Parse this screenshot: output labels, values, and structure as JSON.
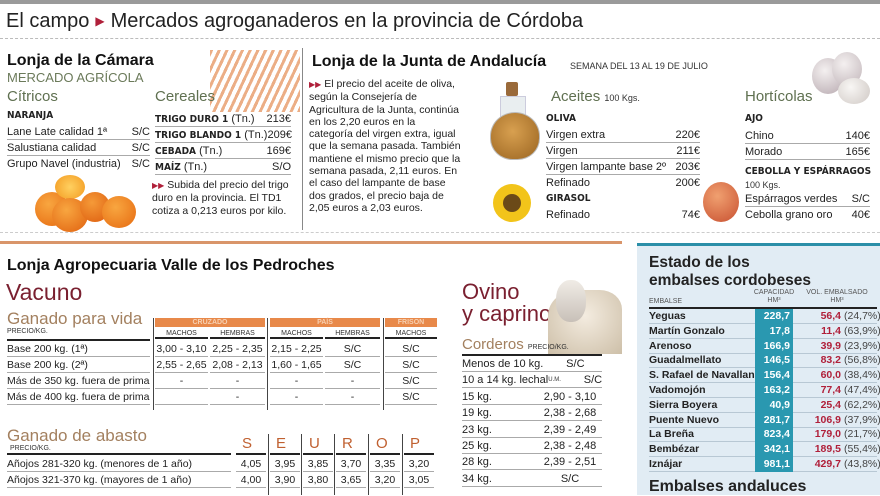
{
  "header": {
    "section": "El campo",
    "title": "Mercados agroganaderos en la provincia de Córdoba"
  },
  "camara": {
    "title": "Lonja de la Cámara",
    "subtitle": "MERCADO AGRÍCOLA",
    "citricos": {
      "title": "Cítricos",
      "group": "NARANJA",
      "rows": [
        {
          "label": "Lane Late calidad 1ª",
          "value": "S/C"
        },
        {
          "label": "Salustiana calidad",
          "value": "S/C"
        },
        {
          "label": "Grupo Navel (industria)",
          "value": "S/C"
        }
      ]
    },
    "cereales": {
      "title": "Cereales",
      "rows": [
        {
          "label": "TRIGO DURO 1",
          "unit": "(Tn.)",
          "value": "213€"
        },
        {
          "label": "TRIGO BLANDO 1",
          "unit": "(Tn.)",
          "value": "209€"
        },
        {
          "label": "CEBADA",
          "unit": "(Tn.)",
          "value": "169€"
        },
        {
          "label": "MAÍZ",
          "unit": "(Tn.)",
          "value": "S/O"
        }
      ],
      "note": "Subida del precio del trigo duro en la provincia. El TD1 cotiza a 0,213 euros por kilo."
    }
  },
  "junta": {
    "title": "Lonja de la Junta de Andalucía",
    "week": "SEMANA DEL 13 AL 19 DE JULIO",
    "note": "El precio del aceite de oliva, según la Consejería de Agricultura de la Junta, continúa en los 2,20 euros en la categoría del virgen extra, igual que la semana pasada. También mantiene el mismo precio que la semana pasada, 2,11 euros. En el caso del lampante de base dos grados, el precio baja de 2,05 euros  a 2,03 euros.",
    "aceites": {
      "title": "Aceites",
      "unit": "100 Kgs.",
      "oliva": "OLIVA",
      "oliva_rows": [
        {
          "label": "Virgen extra",
          "value": "220€"
        },
        {
          "label": "Virgen",
          "value": "211€"
        },
        {
          "label": "Virgen lampante base 2º",
          "value": "203€"
        },
        {
          "label": "Refinado",
          "value": "200€"
        }
      ],
      "girasol": "GIRASOL",
      "girasol_rows": [
        {
          "label": "Refinado",
          "value": "74€"
        }
      ]
    },
    "horticolas": {
      "title": "Hortícolas",
      "ajo": "AJO",
      "ajo_rows": [
        {
          "label": "Chino",
          "value": "140€"
        },
        {
          "label": "Morado",
          "value": "165€"
        }
      ],
      "cebolla": "CEBOLLA Y ESPÁRRAGOS",
      "cebolla_unit": "100 Kgs.",
      "cebolla_rows": [
        {
          "label": "Espárragos verdes",
          "value": "S/C"
        },
        {
          "label": "Cebolla grano oro",
          "value": "40€"
        }
      ]
    }
  },
  "pedroches": {
    "title": "Lonja Agropecuaria Valle de los Pedroches",
    "vacuno": "Vacuno",
    "vida": {
      "title": "Ganado para vida",
      "unit": "PRECIO/KG.",
      "groups": [
        "CRUZADO",
        "PAÍS",
        "FRISON"
      ],
      "subheaders": [
        "MACHOS",
        "HEMBRAS",
        "MACHOS",
        "HEMBRAS",
        "MACHOS"
      ],
      "rows": [
        {
          "label": "Base 200 kg. (1ª)",
          "values": [
            "3,00 - 3,10",
            "2,25 - 2,35",
            "2,15 - 2,25",
            "S/C",
            "S/C"
          ]
        },
        {
          "label": "Base 200 kg. (2ª)",
          "values": [
            "2,55 - 2,65",
            "2,08 - 2,13",
            "1,60 - 1,65",
            "S/C",
            "S/C"
          ]
        },
        {
          "label": "Más de 350 kg. fuera de prima",
          "values": [
            "-",
            "-",
            "-",
            "-",
            "S/C"
          ]
        },
        {
          "label": "Más de 400 kg. fuera de prima",
          "values": [
            "",
            "-",
            "-",
            "-",
            "S/C"
          ]
        }
      ]
    },
    "abasto": {
      "title": "Ganado de abasto",
      "unit": "PRECIO/KG.",
      "columns": [
        "S",
        "E",
        "U",
        "R",
        "O",
        "P"
      ],
      "rows": [
        {
          "label": "Añojos 281-320 kg. (menores de 1 año)",
          "values": [
            "4,05",
            "3,95",
            "3,85",
            "3,70",
            "3,35",
            "3,20"
          ]
        },
        {
          "label": "Añojos 321-370 kg. (mayores de 1 año)",
          "values": [
            "4,00",
            "3,90",
            "3,80",
            "3,65",
            "3,20",
            "3,05"
          ]
        }
      ]
    },
    "ovino": {
      "title1": "Ovino",
      "title2": "y caprino",
      "corderos": "Corderos",
      "unit": "PRECIO/KG.",
      "lechal_unit": "U.M.",
      "rows": [
        {
          "label": "Menos de 10 kg.",
          "value": "S/C"
        },
        {
          "label": "10 a 14 kg. lechal",
          "value": "S/C"
        },
        {
          "label": "15 kg.",
          "value": "2,90 - 3,10"
        },
        {
          "label": "19 kg.",
          "value": "2,38 - 2,68"
        },
        {
          "label": "23 kg.",
          "value": "2,39 - 2,49"
        },
        {
          "label": "25 kg.",
          "value": "2,38 - 2,48"
        },
        {
          "label": "28 kg.",
          "value": "2,39 - 2,51"
        },
        {
          "label": "34 kg.",
          "value": "S/C"
        }
      ]
    }
  },
  "embalses": {
    "title": "Estado de los embalses cordobeses",
    "col_name": "EMBALSE",
    "col_cap": "CAPACIDAD HM³",
    "col_vol": "VOL. EMBALSADO HM³",
    "rows": [
      [
        "Yeguas",
        "228,7",
        "56,4",
        "(24,7%)"
      ],
      [
        "Martín Gonzalo",
        "17,8",
        "11,4",
        "(63,9%)"
      ],
      [
        "Arenoso",
        "166,9",
        "39,9",
        "(23,9%)"
      ],
      [
        "Guadalmellato",
        "146,5",
        "83,2",
        "(56,8%)"
      ],
      [
        "S. Rafael de Navallana",
        "156,4",
        "60,0",
        "(38,4%)"
      ],
      [
        "Vadomojón",
        "163,2",
        "77,4",
        "(47,4%)"
      ],
      [
        "Sierra Boyera",
        "40,9",
        "25,4",
        "(62,2%)"
      ],
      [
        "Puente Nuevo",
        "281,7",
        "106,9",
        "(37,9%)"
      ],
      [
        "La Breña",
        "823,4",
        "179,0",
        "(21,7%)"
      ],
      [
        "Bembézar",
        "342,1",
        "189,5",
        "(55,4%)"
      ],
      [
        "Iznájar",
        "981,1",
        "429,7",
        "(43,8%)"
      ]
    ],
    "andaluces": "Embalses andaluces"
  },
  "colors": {
    "accent_red": "#b0203a",
    "orange": "#e8894a",
    "teal": "#2a98b0"
  }
}
